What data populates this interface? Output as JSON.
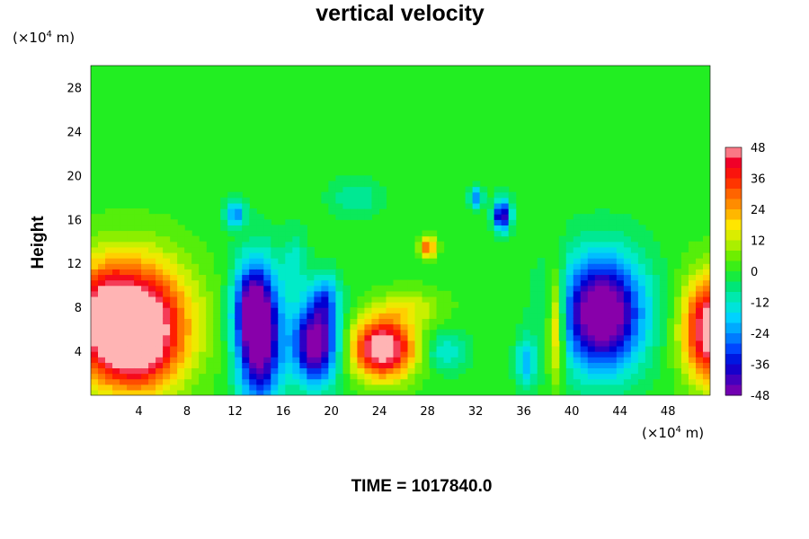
{
  "chart_data": {
    "type": "heatmap",
    "title": "vertical velocity",
    "ylabel": "Height",
    "xlabel": "",
    "x_unit": {
      "prefix": "(×10",
      "exp": "4",
      "suffix": " m)"
    },
    "y_unit": {
      "prefix": "(×10",
      "exp": "4",
      "suffix": " m)"
    },
    "xlim": [
      0,
      51.5
    ],
    "ylim": [
      0,
      30
    ],
    "xticks": [
      4,
      8,
      12,
      16,
      20,
      24,
      28,
      32,
      36,
      40,
      44,
      48
    ],
    "yticks": [
      4,
      8,
      12,
      16,
      20,
      24,
      28
    ],
    "colorbar": {
      "range": [
        -48,
        48
      ],
      "ticks": [
        48,
        36,
        24,
        12,
        0,
        -12,
        -24,
        -36,
        -48
      ]
    },
    "footer": "TIME = 1017840.0",
    "features": [
      {
        "x": 3.5,
        "y": 6.5,
        "amp": 60,
        "sx": 3.2,
        "sy": 4.0
      },
      {
        "x": 3.8,
        "y": 4.5,
        "amp": 15,
        "sx": 2.0,
        "sy": 2.5
      },
      {
        "x": 1.0,
        "y": 7.5,
        "amp": 20,
        "sx": 1.5,
        "sy": 3.0
      },
      {
        "x": 14.0,
        "y": 5.5,
        "amp": -58,
        "sx": 1.3,
        "sy": 4.2
      },
      {
        "x": 13.2,
        "y": 8.5,
        "amp": -20,
        "sx": 1.0,
        "sy": 2.5
      },
      {
        "x": 18.7,
        "y": 4.8,
        "amp": -55,
        "sx": 1.3,
        "sy": 2.6
      },
      {
        "x": 24.3,
        "y": 4.3,
        "amp": 56,
        "sx": 1.8,
        "sy": 1.9
      },
      {
        "x": 34.2,
        "y": 16.4,
        "amp": -45,
        "sx": 0.5,
        "sy": 1.0
      },
      {
        "x": 32.0,
        "y": 18.0,
        "amp": -25,
        "sx": 0.4,
        "sy": 0.7
      },
      {
        "x": 42.5,
        "y": 7.5,
        "amp": -58,
        "sx": 2.4,
        "sy": 3.6
      },
      {
        "x": 51.6,
        "y": 6.0,
        "amp": 55,
        "sx": 1.6,
        "sy": 3.3
      },
      {
        "x": 38.7,
        "y": 6.5,
        "amp": 30,
        "sx": 0.5,
        "sy": 3.5
      },
      {
        "x": 36.2,
        "y": 3.0,
        "amp": -20,
        "sx": 0.6,
        "sy": 1.6
      },
      {
        "x": 28.0,
        "y": 13.5,
        "amp": 30,
        "sx": 0.5,
        "sy": 0.7
      },
      {
        "x": 12.0,
        "y": 16.5,
        "amp": -25,
        "sx": 0.6,
        "sy": 0.8
      },
      {
        "x": 19.5,
        "y": 9.0,
        "amp": -20,
        "sx": 0.8,
        "sy": 1.5
      },
      {
        "x": 22.0,
        "y": 18.0,
        "amp": -10,
        "sx": 1.5,
        "sy": 1.2
      },
      {
        "x": 29.5,
        "y": 4.0,
        "amp": -15,
        "sx": 1.2,
        "sy": 1.2
      },
      {
        "x": 17.0,
        "y": 12.0,
        "amp": -12,
        "sx": 0.7,
        "sy": 2.0
      },
      {
        "x": 26.5,
        "y": 8.0,
        "amp": 12,
        "sx": 2.0,
        "sy": 1.2
      }
    ]
  }
}
